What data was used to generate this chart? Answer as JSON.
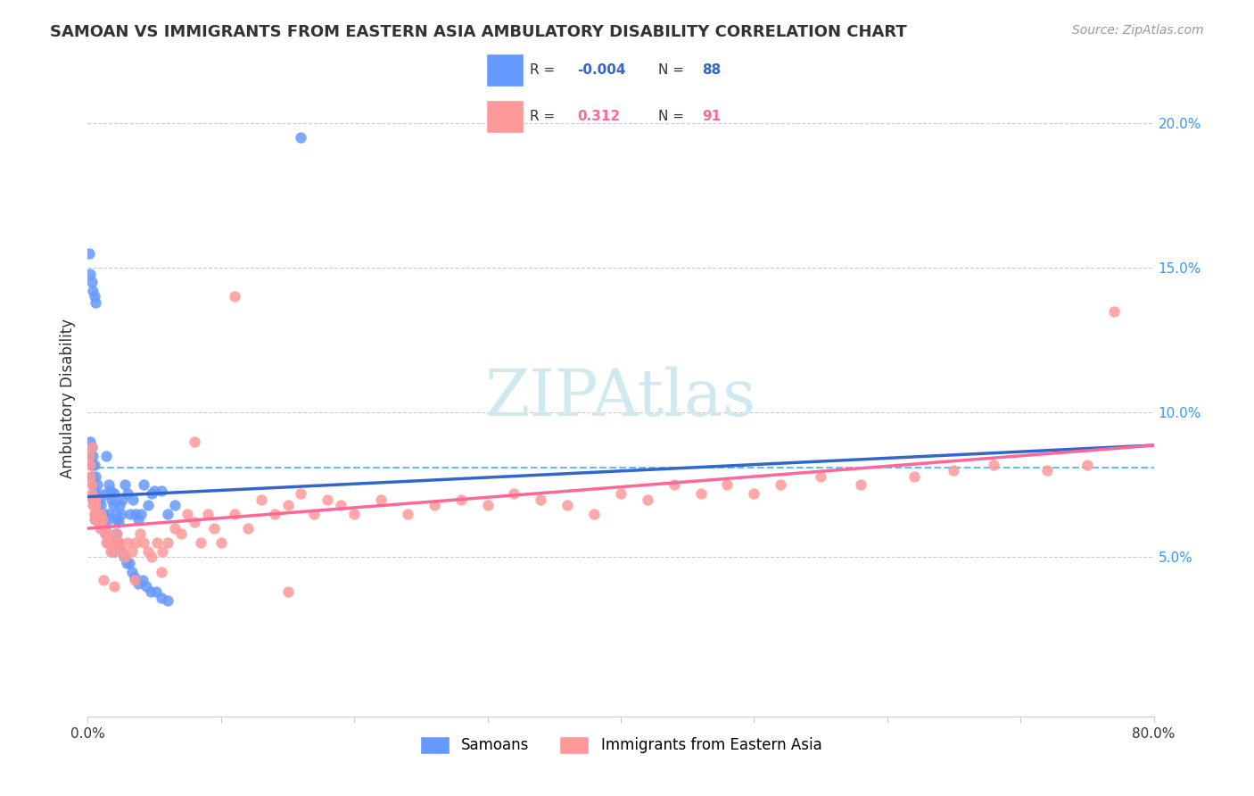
{
  "title": "SAMOAN VS IMMIGRANTS FROM EASTERN ASIA AMBULATORY DISABILITY CORRELATION CHART",
  "source": "Source: ZipAtlas.com",
  "xlabel": "",
  "ylabel": "Ambulatory Disability",
  "xlim": [
    0.0,
    0.8
  ],
  "ylim": [
    -0.005,
    0.215
  ],
  "xticks": [
    0.0,
    0.1,
    0.2,
    0.3,
    0.4,
    0.5,
    0.6,
    0.7,
    0.8
  ],
  "xticklabels": [
    "0.0%",
    "",
    "",
    "",
    "",
    "",
    "",
    "",
    "80.0%"
  ],
  "yticks_right": [
    0.05,
    0.1,
    0.15,
    0.2
  ],
  "ytick_labels_right": [
    "5.0%",
    "10.0%",
    "15.0%",
    "20.0%"
  ],
  "blue_color": "#6699FF",
  "pink_color": "#FF9999",
  "blue_line_color": "#3366CC",
  "pink_line_color": "#FF6699",
  "dashed_line_color": "#66BBFF",
  "watermark_color": "#D0E8F0",
  "legend_box_color": "#E8F4FF",
  "R_blue": -0.004,
  "N_blue": 88,
  "R_pink": 0.312,
  "N_pink": 91,
  "samoan_x": [
    0.002,
    0.003,
    0.003,
    0.004,
    0.004,
    0.005,
    0.005,
    0.006,
    0.006,
    0.007,
    0.007,
    0.008,
    0.008,
    0.009,
    0.009,
    0.01,
    0.01,
    0.011,
    0.011,
    0.012,
    0.012,
    0.013,
    0.014,
    0.015,
    0.015,
    0.016,
    0.017,
    0.018,
    0.019,
    0.02,
    0.021,
    0.022,
    0.023,
    0.024,
    0.025,
    0.026,
    0.028,
    0.03,
    0.032,
    0.034,
    0.036,
    0.038,
    0.04,
    0.042,
    0.045,
    0.048,
    0.05,
    0.055,
    0.06,
    0.065,
    0.002,
    0.003,
    0.004,
    0.005,
    0.006,
    0.007,
    0.008,
    0.009,
    0.01,
    0.011,
    0.012,
    0.013,
    0.015,
    0.017,
    0.019,
    0.021,
    0.023,
    0.025,
    0.027,
    0.029,
    0.031,
    0.033,
    0.035,
    0.038,
    0.041,
    0.044,
    0.047,
    0.051,
    0.055,
    0.06,
    0.001,
    0.002,
    0.003,
    0.004,
    0.005,
    0.006,
    0.014,
    0.16
  ],
  "samoan_y": [
    0.085,
    0.078,
    0.082,
    0.075,
    0.07,
    0.072,
    0.068,
    0.065,
    0.063,
    0.07,
    0.068,
    0.066,
    0.064,
    0.063,
    0.062,
    0.065,
    0.063,
    0.061,
    0.06,
    0.065,
    0.063,
    0.058,
    0.072,
    0.065,
    0.063,
    0.075,
    0.073,
    0.07,
    0.068,
    0.072,
    0.065,
    0.063,
    0.062,
    0.068,
    0.065,
    0.07,
    0.075,
    0.072,
    0.065,
    0.07,
    0.065,
    0.063,
    0.065,
    0.075,
    0.068,
    0.072,
    0.073,
    0.073,
    0.065,
    0.068,
    0.09,
    0.088,
    0.085,
    0.082,
    0.078,
    0.075,
    0.072,
    0.07,
    0.068,
    0.065,
    0.063,
    0.06,
    0.055,
    0.055,
    0.052,
    0.058,
    0.055,
    0.052,
    0.05,
    0.048,
    0.048,
    0.045,
    0.043,
    0.041,
    0.042,
    0.04,
    0.038,
    0.038,
    0.036,
    0.035,
    0.155,
    0.148,
    0.145,
    0.142,
    0.14,
    0.138,
    0.085,
    0.195
  ],
  "eastern_asia_x": [
    0.001,
    0.002,
    0.002,
    0.003,
    0.003,
    0.004,
    0.004,
    0.005,
    0.005,
    0.006,
    0.006,
    0.007,
    0.008,
    0.009,
    0.01,
    0.011,
    0.012,
    0.013,
    0.014,
    0.015,
    0.016,
    0.017,
    0.018,
    0.019,
    0.02,
    0.022,
    0.024,
    0.026,
    0.028,
    0.03,
    0.033,
    0.036,
    0.039,
    0.042,
    0.045,
    0.048,
    0.052,
    0.056,
    0.06,
    0.065,
    0.07,
    0.075,
    0.08,
    0.085,
    0.09,
    0.095,
    0.1,
    0.11,
    0.12,
    0.13,
    0.14,
    0.15,
    0.16,
    0.17,
    0.18,
    0.19,
    0.2,
    0.22,
    0.24,
    0.26,
    0.28,
    0.3,
    0.32,
    0.34,
    0.36,
    0.38,
    0.4,
    0.42,
    0.44,
    0.46,
    0.48,
    0.5,
    0.52,
    0.55,
    0.58,
    0.62,
    0.65,
    0.68,
    0.72,
    0.75,
    0.003,
    0.005,
    0.008,
    0.012,
    0.02,
    0.035,
    0.055,
    0.08,
    0.11,
    0.15,
    0.77
  ],
  "eastern_asia_y": [
    0.085,
    0.082,
    0.078,
    0.075,
    0.072,
    0.07,
    0.068,
    0.065,
    0.063,
    0.07,
    0.068,
    0.065,
    0.062,
    0.06,
    0.065,
    0.063,
    0.06,
    0.058,
    0.055,
    0.058,
    0.055,
    0.052,
    0.055,
    0.052,
    0.055,
    0.058,
    0.055,
    0.052,
    0.05,
    0.055,
    0.052,
    0.055,
    0.058,
    0.055,
    0.052,
    0.05,
    0.055,
    0.052,
    0.055,
    0.06,
    0.058,
    0.065,
    0.062,
    0.055,
    0.065,
    0.06,
    0.055,
    0.065,
    0.06,
    0.07,
    0.065,
    0.068,
    0.072,
    0.065,
    0.07,
    0.068,
    0.065,
    0.07,
    0.065,
    0.068,
    0.07,
    0.068,
    0.072,
    0.07,
    0.068,
    0.065,
    0.072,
    0.07,
    0.075,
    0.072,
    0.075,
    0.072,
    0.075,
    0.078,
    0.075,
    0.078,
    0.08,
    0.082,
    0.08,
    0.082,
    0.088,
    0.065,
    0.062,
    0.042,
    0.04,
    0.042,
    0.045,
    0.09,
    0.14,
    0.038,
    0.135
  ]
}
